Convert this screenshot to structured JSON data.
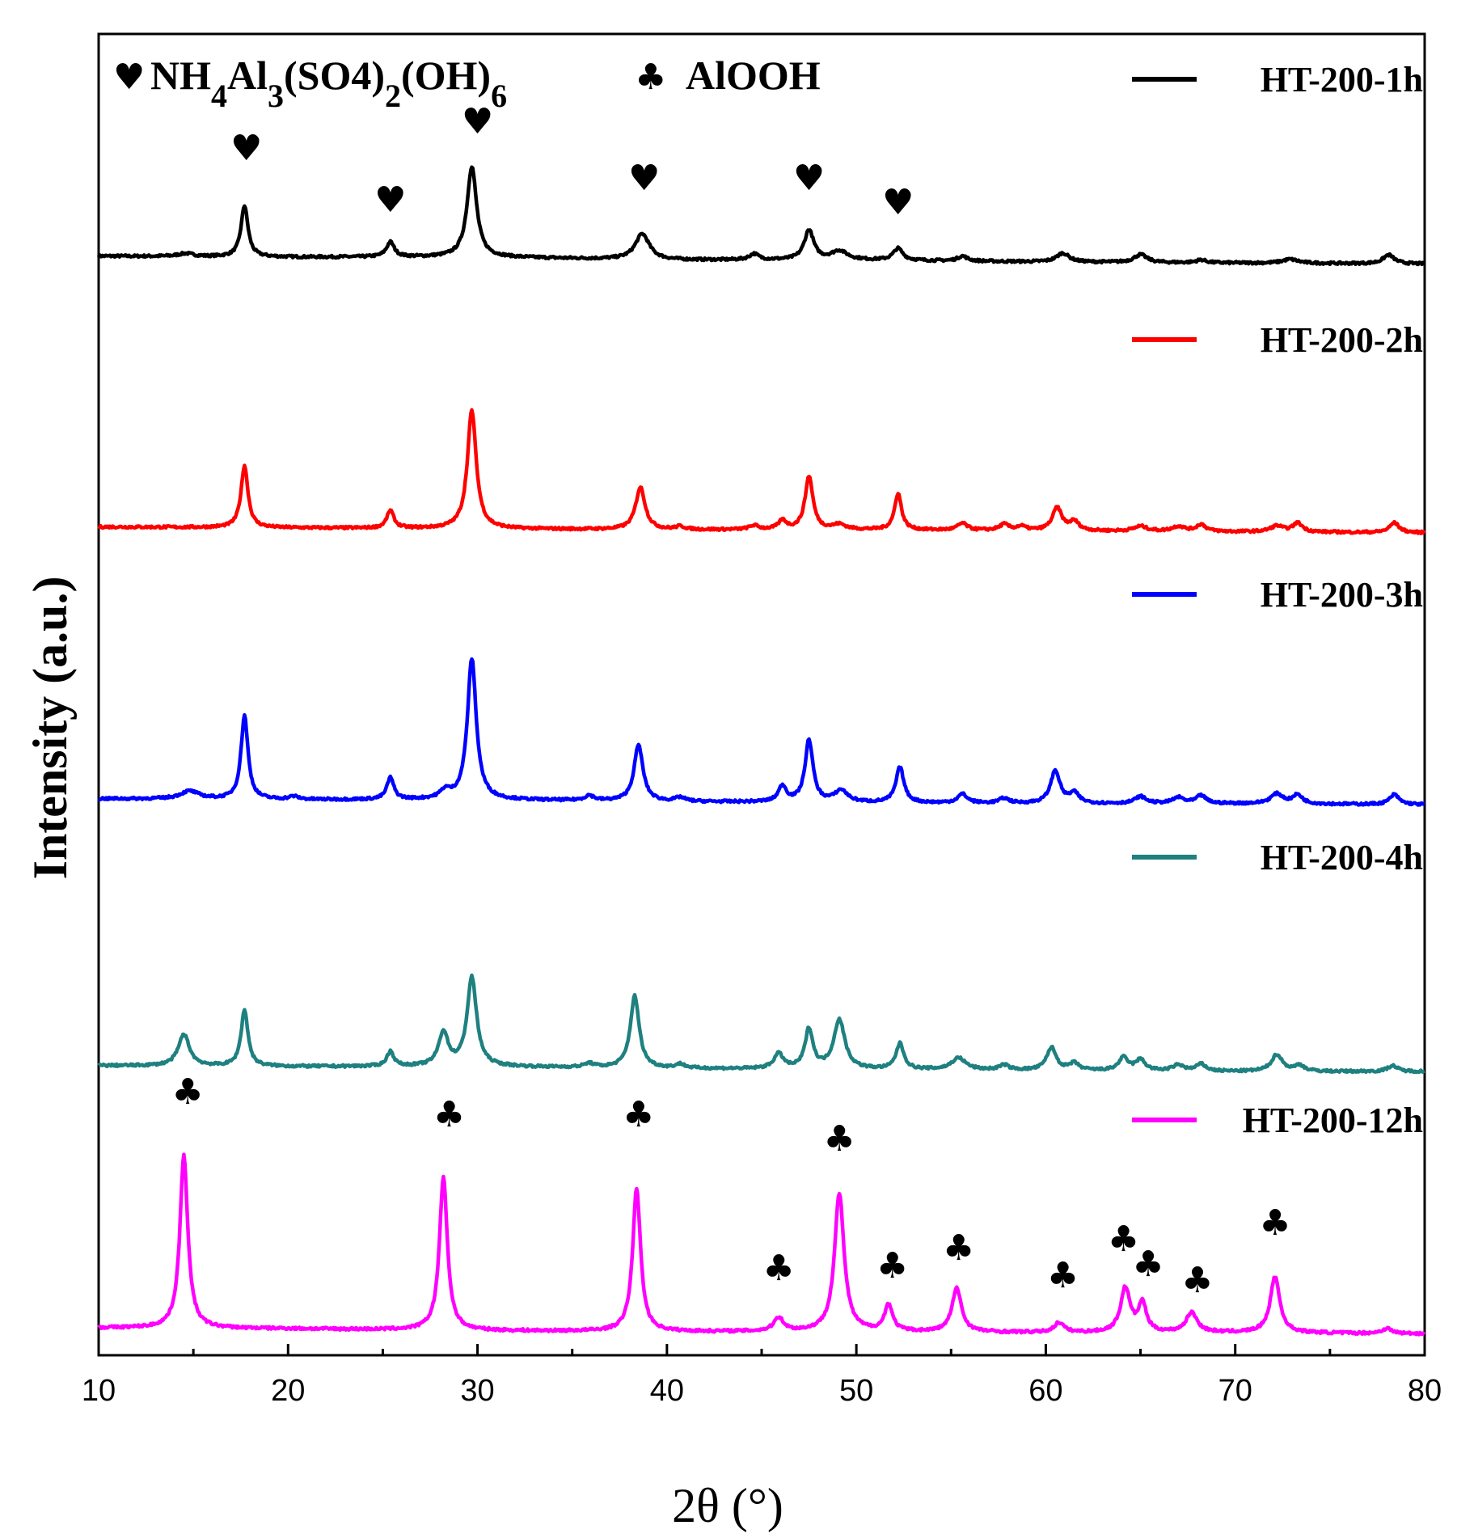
{
  "chart_data": {
    "type": "line",
    "title": "",
    "xlabel": "2θ (°)",
    "ylabel": "Intensity (a.u.)",
    "xlim": [
      10,
      80
    ],
    "xticks": [
      10,
      20,
      30,
      40,
      50,
      60,
      70,
      80
    ],
    "y_ticks_shown": false,
    "legend_position": "right",
    "phase_legend": {
      "heart_symbol": "♥",
      "heart_formula_parts": [
        {
          "text": "NH",
          "sub": false
        },
        {
          "text": "4",
          "sub": true
        },
        {
          "text": "Al",
          "sub": false
        },
        {
          "text": "3",
          "sub": true
        },
        {
          "text": "(SO4)",
          "sub": false
        },
        {
          "text": "2",
          "sub": true
        },
        {
          "text": "(OH)",
          "sub": false
        },
        {
          "text": "6",
          "sub": true
        }
      ],
      "club_symbol": "♣",
      "club_label": "AlOOH"
    },
    "series": [
      {
        "name": "HT-200-1h",
        "color": "#000000",
        "baseline": [
          [
            10,
            15
          ],
          [
            20,
            14
          ],
          [
            30,
            14
          ],
          [
            40,
            11
          ],
          [
            50,
            11
          ],
          [
            60,
            9
          ],
          [
            70,
            8
          ],
          [
            80,
            7
          ]
        ],
        "peaks": [
          [
            14.6,
            3,
            0.5
          ],
          [
            17.7,
            52,
            0.22
          ],
          [
            25.4,
            15,
            0.25
          ],
          [
            29.7,
            92,
            0.3
          ],
          [
            38.7,
            26,
            0.45
          ],
          [
            44.6,
            6,
            0.3
          ],
          [
            47.5,
            30,
            0.3
          ],
          [
            49.1,
            9,
            0.5
          ],
          [
            52.2,
            12,
            0.3
          ],
          [
            55.6,
            5,
            0.3
          ],
          [
            60.9,
            9,
            0.4
          ],
          [
            65.0,
            8,
            0.4
          ],
          [
            68.2,
            3,
            0.3
          ],
          [
            72.9,
            4,
            0.5
          ],
          [
            78.1,
            9,
            0.35
          ]
        ],
        "noise": 1.2
      },
      {
        "name": "HT-200-2h",
        "color": "#ff0000",
        "baseline": [
          [
            10,
            11
          ],
          [
            20,
            10
          ],
          [
            30,
            9
          ],
          [
            40,
            8
          ],
          [
            50,
            8
          ],
          [
            60,
            7
          ],
          [
            70,
            6
          ],
          [
            80,
            5
          ]
        ],
        "peaks": [
          [
            17.7,
            63,
            0.22
          ],
          [
            25.4,
            18,
            0.22
          ],
          [
            29.7,
            120,
            0.28
          ],
          [
            38.6,
            43,
            0.3
          ],
          [
            40.7,
            3,
            0.3
          ],
          [
            44.6,
            4,
            0.3
          ],
          [
            46.1,
            9,
            0.25
          ],
          [
            47.5,
            54,
            0.25
          ],
          [
            49.1,
            5,
            0.4
          ],
          [
            52.2,
            37,
            0.22
          ],
          [
            55.6,
            7,
            0.3
          ],
          [
            57.8,
            6,
            0.3
          ],
          [
            58.7,
            4,
            0.3
          ],
          [
            60.6,
            23,
            0.3
          ],
          [
            61.5,
            9,
            0.3
          ],
          [
            65.0,
            5,
            0.4
          ],
          [
            67.0,
            5,
            0.4
          ],
          [
            68.2,
            7,
            0.3
          ],
          [
            72.2,
            6,
            0.4
          ],
          [
            73.3,
            9,
            0.3
          ],
          [
            78.4,
            10,
            0.3
          ]
        ],
        "noise": 1.2
      },
      {
        "name": "HT-200-3h",
        "color": "#0000ff",
        "baseline": [
          [
            10,
            10
          ],
          [
            20,
            9
          ],
          [
            30,
            9
          ],
          [
            40,
            7
          ],
          [
            50,
            6
          ],
          [
            60,
            5
          ],
          [
            70,
            5
          ],
          [
            80,
            4
          ]
        ],
        "peaks": [
          [
            14.8,
            8,
            0.6
          ],
          [
            17.7,
            85,
            0.22
          ],
          [
            20.3,
            3,
            0.3
          ],
          [
            25.4,
            22,
            0.22
          ],
          [
            28.3,
            8,
            0.3
          ],
          [
            29.7,
            143,
            0.28
          ],
          [
            35.9,
            5,
            0.3
          ],
          [
            38.5,
            57,
            0.28
          ],
          [
            40.7,
            4,
            0.3
          ],
          [
            46.1,
            16,
            0.25
          ],
          [
            47.5,
            63,
            0.25
          ],
          [
            49.2,
            12,
            0.4
          ],
          [
            52.3,
            36,
            0.25
          ],
          [
            55.6,
            9,
            0.3
          ],
          [
            57.8,
            5,
            0.3
          ],
          [
            60.5,
            33,
            0.3
          ],
          [
            61.5,
            10,
            0.3
          ],
          [
            65.0,
            7,
            0.35
          ],
          [
            67.0,
            6,
            0.35
          ],
          [
            68.2,
            8,
            0.3
          ],
          [
            72.2,
            10,
            0.4
          ],
          [
            73.3,
            9,
            0.3
          ],
          [
            78.4,
            10,
            0.3
          ]
        ],
        "noise": 1.2
      },
      {
        "name": "HT-200-4h",
        "color": "#1f8080",
        "baseline": [
          [
            10,
            10
          ],
          [
            20,
            9
          ],
          [
            30,
            9
          ],
          [
            40,
            7
          ],
          [
            50,
            6
          ],
          [
            60,
            5
          ],
          [
            70,
            4
          ],
          [
            80,
            4
          ]
        ],
        "peaks": [
          [
            14.5,
            32,
            0.35
          ],
          [
            17.7,
            57,
            0.22
          ],
          [
            25.4,
            15,
            0.22
          ],
          [
            28.2,
            34,
            0.3
          ],
          [
            29.7,
            90,
            0.3
          ],
          [
            35.9,
            4,
            0.3
          ],
          [
            38.3,
            73,
            0.28
          ],
          [
            40.7,
            4,
            0.3
          ],
          [
            45.9,
            15,
            0.3
          ],
          [
            47.5,
            40,
            0.25
          ],
          [
            49.1,
            50,
            0.35
          ],
          [
            52.3,
            26,
            0.25
          ],
          [
            55.4,
            12,
            0.45
          ],
          [
            57.8,
            5,
            0.3
          ],
          [
            60.3,
            23,
            0.3
          ],
          [
            61.5,
            7,
            0.3
          ],
          [
            64.1,
            13,
            0.3
          ],
          [
            65.0,
            11,
            0.3
          ],
          [
            67.0,
            6,
            0.35
          ],
          [
            68.2,
            7,
            0.3
          ],
          [
            72.2,
            17,
            0.35
          ],
          [
            73.4,
            6,
            0.3
          ],
          [
            78.3,
            6,
            0.3
          ]
        ],
        "noise": 1.2
      },
      {
        "name": "HT-200-12h",
        "color": "#ff00ff",
        "baseline": [
          [
            10,
            9
          ],
          [
            20,
            8
          ],
          [
            30,
            6
          ],
          [
            40,
            5
          ],
          [
            50,
            5
          ],
          [
            60,
            4
          ],
          [
            70,
            4
          ],
          [
            80,
            3
          ]
        ],
        "peaks": [
          [
            14.5,
            175,
            0.25
          ],
          [
            28.2,
            155,
            0.25
          ],
          [
            38.4,
            145,
            0.25
          ],
          [
            45.9,
            14,
            0.3
          ],
          [
            49.1,
            140,
            0.3
          ],
          [
            51.7,
            27,
            0.25
          ],
          [
            55.3,
            44,
            0.3
          ],
          [
            60.7,
            10,
            0.3
          ],
          [
            64.2,
            45,
            0.3
          ],
          [
            65.1,
            29,
            0.25
          ],
          [
            67.7,
            20,
            0.35
          ],
          [
            72.1,
            57,
            0.3
          ],
          [
            78.0,
            5,
            0.3
          ]
        ],
        "noise": 1.3
      }
    ],
    "annotations": {
      "heart_positions": [
        17.8,
        25.4,
        30.0,
        38.8,
        47.5,
        52.2
      ],
      "club_positions": [
        14.7,
        28.5,
        38.5,
        45.9,
        49.1,
        51.9,
        55.4,
        60.9,
        64.1,
        65.4,
        68.0,
        72.1
      ]
    }
  }
}
